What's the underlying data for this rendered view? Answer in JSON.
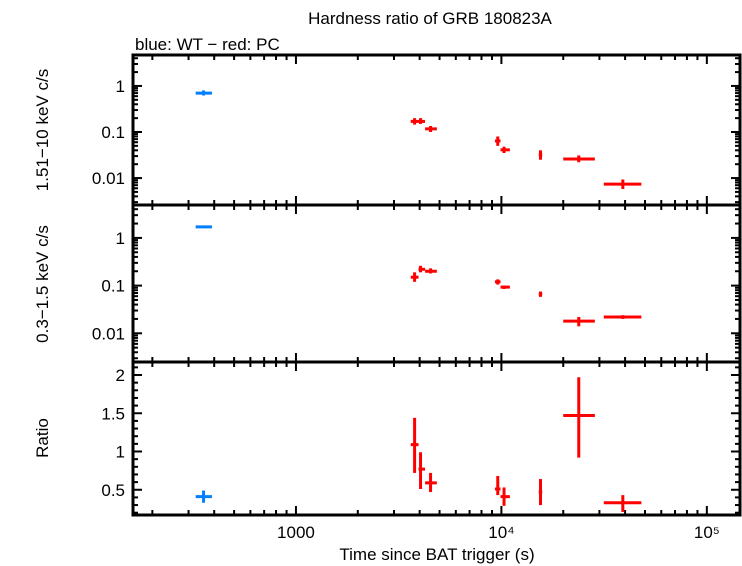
{
  "chart_data": {
    "type": "scatter",
    "title": "Hardness ratio of GRB 180823A",
    "subtitle": "blue: WT − red: PC",
    "xlabel": "Time since BAT trigger (s)",
    "xscale": "log",
    "xlim": [
      161,
      145000
    ],
    "xticks": [
      {
        "v": 1000,
        "label": "1000"
      },
      {
        "v": 10000,
        "label": "10⁴"
      },
      {
        "v": 100000,
        "label": "10⁵"
      }
    ],
    "colors": {
      "WT": "#0080ff",
      "PC": "#ff0000"
    },
    "panels": [
      {
        "key": "hard",
        "ylabel": "1.51−10 keV c/s",
        "yscale": "log",
        "ylim": [
          0.0026,
          4.7
        ],
        "yticks": [
          {
            "v": 1,
            "label": "1"
          },
          {
            "v": 0.1,
            "label": "0.1"
          },
          {
            "v": 0.01,
            "label": "0.01"
          }
        ]
      },
      {
        "key": "soft",
        "ylabel": "0.3−1.5 keV c/s",
        "yscale": "log",
        "ylim": [
          0.0025,
          4.9
        ],
        "yticks": [
          {
            "v": 1,
            "label": "1"
          },
          {
            "v": 0.1,
            "label": "0.1"
          },
          {
            "v": 0.01,
            "label": "0.01"
          }
        ]
      },
      {
        "key": "ratio",
        "ylabel": "Ratio",
        "yscale": "linear",
        "ylim": [
          0.17,
          2.17
        ],
        "yticks": [
          {
            "v": 2,
            "label": "2"
          },
          {
            "v": 1.5,
            "label": "1.5"
          },
          {
            "v": 1,
            "label": "1"
          },
          {
            "v": 0.5,
            "label": "0.5"
          }
        ]
      }
    ],
    "series": [
      {
        "mode": "WT",
        "points": [
          {
            "t": [
              355,
              325,
              390
            ],
            "hard": [
              0.7,
              0.62,
              0.8
            ],
            "soft": [
              1.7,
              1.6,
              1.8
            ],
            "ratio": [
              0.41,
              0.33,
              0.49
            ]
          }
        ]
      },
      {
        "mode": "PC",
        "points": [
          {
            "t": [
              3780,
              3620,
              3950
            ],
            "hard": [
              0.17,
              0.145,
              0.2
            ],
            "soft": [
              0.15,
              0.12,
              0.19
            ],
            "ratio": [
              1.09,
              0.72,
              1.44
            ]
          },
          {
            "t": [
              4040,
              3950,
              4250
            ],
            "hard": [
              0.17,
              0.15,
              0.2
            ],
            "soft": [
              0.22,
              0.19,
              0.26
            ],
            "ratio": [
              0.77,
              0.51,
              0.99
            ]
          },
          {
            "t": [
              4520,
              4250,
              4850
            ],
            "hard": [
              0.117,
              0.1,
              0.135
            ],
            "soft": [
              0.2,
              0.18,
              0.23
            ],
            "ratio": [
              0.59,
              0.47,
              0.72
            ]
          },
          {
            "t": [
              9600,
              9300,
              9900
            ],
            "hard": [
              0.064,
              0.05,
              0.08
            ],
            "soft": [
              0.12,
              0.105,
              0.135
            ],
            "ratio": [
              0.51,
              0.43,
              0.68
            ]
          },
          {
            "t": [
              10300,
              9900,
              11000
            ],
            "hard": [
              0.041,
              0.035,
              0.048
            ],
            "soft": [
              0.093,
              0.085,
              0.1
            ],
            "ratio": [
              0.41,
              0.29,
              0.53
            ]
          },
          {
            "t": [
              15500,
              15200,
              15800
            ],
            "hard": [
              0.032,
              0.025,
              0.04
            ],
            "soft": [
              0.066,
              0.058,
              0.075
            ],
            "ratio": [
              0.47,
              0.3,
              0.64
            ]
          },
          {
            "t": [
              23800,
              20000,
              28500
            ],
            "hard": [
              0.026,
              0.022,
              0.031
            ],
            "soft": [
              0.018,
              0.014,
              0.022
            ],
            "ratio": [
              1.47,
              0.92,
              1.97
            ]
          },
          {
            "t": [
              39000,
              31500,
              48000
            ],
            "hard": [
              0.0074,
              0.0058,
              0.0093
            ],
            "soft": [
              0.022,
              0.02,
              0.024
            ],
            "ratio": [
              0.33,
              0.21,
              0.43
            ]
          }
        ]
      }
    ]
  }
}
